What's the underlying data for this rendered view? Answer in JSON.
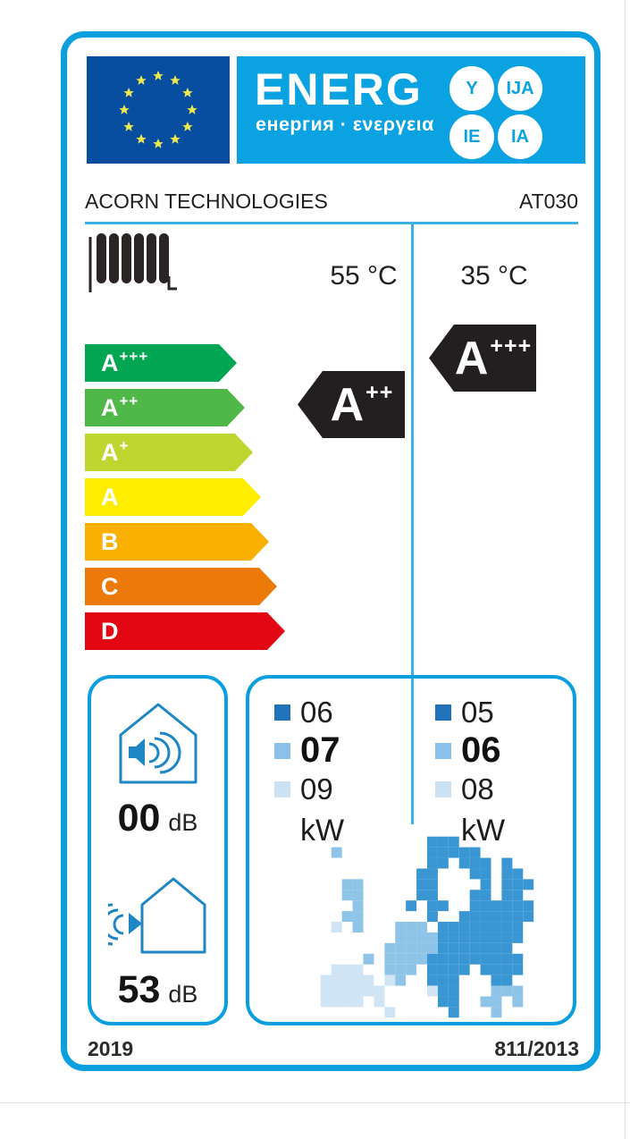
{
  "header": {
    "brand_word": "ENERG",
    "subtitle": "енергия · ενεργεια",
    "circles": [
      "Y",
      "IJA",
      "IE",
      "IA"
    ]
  },
  "supplier": {
    "name": "ACORN TECHNOLOGIES",
    "model": "AT030"
  },
  "temperatures": {
    "left": "55 °C",
    "right": "35 °C"
  },
  "efficiency_scale": [
    {
      "grade": "A",
      "sup": "+++",
      "color": "#00a651"
    },
    {
      "grade": "A",
      "sup": "++",
      "color": "#50b848"
    },
    {
      "grade": "A",
      "sup": "+",
      "color": "#bed62f"
    },
    {
      "grade": "A",
      "sup": "",
      "color": "#ffed00"
    },
    {
      "grade": "B",
      "sup": "",
      "color": "#f9b000"
    },
    {
      "grade": "C",
      "sup": "",
      "color": "#ec7a08"
    },
    {
      "grade": "D",
      "sup": "",
      "color": "#e30613"
    }
  ],
  "ratings": {
    "left": {
      "grade": "A",
      "sup": "++"
    },
    "right": {
      "grade": "A",
      "sup": "+++"
    }
  },
  "sound_power": {
    "indoor": {
      "value": "00",
      "unit": "dB"
    },
    "outdoor": {
      "value": "53",
      "unit": "dB"
    }
  },
  "rated_output": {
    "unit": "kW",
    "left": [
      {
        "value": "06",
        "square_color": "#2173b9"
      },
      {
        "value": "07",
        "square_color": "#8ac0e9"
      },
      {
        "value": "09",
        "square_color": "#cce1f2"
      }
    ],
    "right": [
      {
        "value": "05",
        "square_color": "#2173b9"
      },
      {
        "value": "06",
        "square_color": "#8ac0e9"
      },
      {
        "value": "08",
        "square_color": "#cce1f2"
      }
    ]
  },
  "footer": {
    "year": "2019",
    "regulation": "811/2013"
  },
  "colors": {
    "accent_blue": "#0b9fe0",
    "rating_arrow_black": "#231f20",
    "eu_flag_blue": "#084ea0",
    "eu_star_yellow": "#efe84d",
    "map_dark": "#3a96d2",
    "map_medium": "#8ec4e8",
    "map_light": "#cfe4f4"
  }
}
